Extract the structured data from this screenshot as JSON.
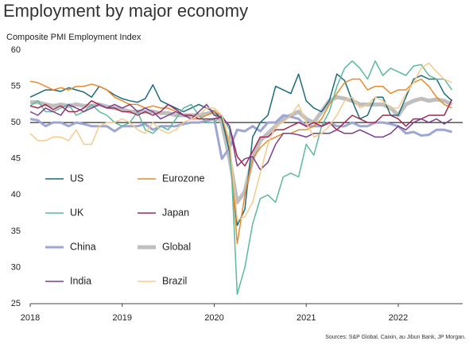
{
  "chart_data": {
    "type": "line",
    "title": "Employment by major economy",
    "subtitle": "Composite PMI Employment Index",
    "source": "Sources: S&P Global, Caixin, au Jibun Bank, JP Morgan.",
    "x": [
      2018,
      2018.083,
      2018.167,
      2018.25,
      2018.333,
      2018.417,
      2018.5,
      2018.583,
      2018.667,
      2018.75,
      2018.833,
      2018.917,
      2019,
      2019.083,
      2019.167,
      2019.25,
      2019.333,
      2019.417,
      2019.5,
      2019.583,
      2019.667,
      2019.75,
      2019.833,
      2019.917,
      2020,
      2020.083,
      2020.167,
      2020.25,
      2020.333,
      2020.417,
      2020.5,
      2020.583,
      2020.667,
      2020.75,
      2020.833,
      2020.917,
      2021,
      2021.083,
      2021.167,
      2021.25,
      2021.333,
      2021.417,
      2021.5,
      2021.583,
      2021.667,
      2021.75,
      2021.833,
      2021.917,
      2022,
      2022.083,
      2022.167,
      2022.25,
      2022.333,
      2022.417,
      2022.5,
      2022.583
    ],
    "xlim": [
      2018,
      2022.7
    ],
    "xticks": [
      2018,
      2019,
      2020,
      2021,
      2022
    ],
    "ylim": [
      25,
      60
    ],
    "yticks": [
      25,
      30,
      35,
      40,
      45,
      50,
      55,
      60
    ],
    "reference_line": 50,
    "grid": false,
    "series": [
      {
        "name": "US",
        "color": "#1b6b7b",
        "line_width": 1.5,
        "values": [
          53.5,
          54,
          54.5,
          54.5,
          54.3,
          54.8,
          54.5,
          54.2,
          53.5,
          55,
          54.5,
          53.8,
          53.3,
          53,
          52.8,
          53.3,
          55.2,
          53,
          52.5,
          52,
          51.5,
          52,
          52.5,
          52,
          51.5,
          50.5,
          46,
          35.8,
          38,
          48,
          50,
          51,
          55,
          54.5,
          54,
          56.7,
          53,
          52,
          51.5,
          53,
          56.7,
          55.8,
          53,
          50.5,
          51,
          53.5,
          53.5,
          51,
          51,
          53.5,
          56,
          56.5,
          56,
          56,
          54,
          53
        ]
      },
      {
        "name": "Eurozone",
        "color": "#e88a2c",
        "line_width": 1.5,
        "values": [
          55.7,
          55.5,
          55,
          54.5,
          54.8,
          54.5,
          55,
          55,
          55.3,
          55,
          54.5,
          53.5,
          53,
          52.5,
          52.5,
          52,
          52.3,
          52,
          52,
          51.5,
          51,
          50.5,
          50.5,
          51,
          51.5,
          51,
          47,
          33.3,
          40,
          45,
          46.5,
          47.5,
          48,
          48.5,
          48.5,
          49,
          49,
          49.5,
          50.5,
          52.5,
          54,
          55.5,
          56,
          56,
          54.5,
          55,
          55,
          54,
          54.5,
          54.5,
          55.5,
          56,
          55,
          53.5,
          52.5,
          52
        ]
      },
      {
        "name": "UK",
        "color": "#5cb99b",
        "line_width": 1.5,
        "values": [
          52.3,
          53,
          51.5,
          51.5,
          52,
          52.5,
          51,
          51.5,
          52.5,
          51.5,
          51,
          50,
          49.5,
          50,
          51.5,
          49,
          48.5,
          49.5,
          49,
          50.5,
          52,
          52.5,
          51,
          50,
          50,
          51,
          49,
          26.3,
          30,
          36,
          39.5,
          40,
          39,
          42.5,
          43,
          42.5,
          47,
          45.5,
          49.5,
          51.5,
          55,
          57.5,
          58.5,
          57.5,
          56,
          58.5,
          56.5,
          57.5,
          57,
          56.5,
          57.8,
          58,
          56.5,
          56,
          56,
          54.5
        ]
      },
      {
        "name": "Japan",
        "color": "#a2284f",
        "line_width": 1.5,
        "values": [
          52.3,
          52,
          52.5,
          51.8,
          52.3,
          51.5,
          51.5,
          52,
          53,
          52.5,
          52,
          52,
          51.5,
          51.5,
          51,
          51.5,
          51,
          51.5,
          52.5,
          51.8,
          51,
          51,
          50.5,
          50.5,
          50.5,
          50.8,
          49.5,
          45.3,
          44,
          46,
          48,
          48,
          49,
          49,
          49.5,
          50,
          49.5,
          50,
          49.5,
          50,
          49,
          50,
          51,
          50.5,
          50,
          50,
          51,
          51,
          50.5,
          49.5,
          50.5,
          50.5,
          51,
          51,
          51,
          53.2
        ]
      },
      {
        "name": "China",
        "color": "#9ea6d6",
        "line_width": 3,
        "values": [
          50.5,
          50.3,
          49.5,
          50,
          50,
          49.5,
          50,
          49.8,
          49.5,
          49.5,
          49.5,
          48.8,
          49.5,
          49.5,
          49.5,
          49.8,
          49,
          49.5,
          49.5,
          49.5,
          49.8,
          50,
          50,
          50.2,
          50.5,
          45,
          46.5,
          49,
          48.8,
          49.5,
          48.8,
          50,
          50,
          51,
          50.8,
          50.5,
          49.5,
          49.5,
          49.5,
          50,
          49.5,
          49.5,
          50,
          49.5,
          49.5,
          50,
          50,
          49.8,
          49.5,
          48.5,
          48.7,
          48.2,
          48.3,
          49,
          49,
          48.7
        ]
      },
      {
        "name": "Global",
        "color": "#bfbfbf",
        "line_width": 5,
        "values": [
          52.8,
          52.8,
          52.5,
          52.3,
          52.5,
          52.3,
          52.5,
          52.3,
          52.3,
          52.5,
          52.2,
          52,
          51.8,
          51.5,
          51.5,
          51.5,
          51.5,
          51.3,
          51.3,
          51,
          51,
          51,
          51,
          51.2,
          51.5,
          50,
          45,
          39,
          40.5,
          45,
          47.5,
          48.5,
          49.5,
          50.5,
          51,
          51.5,
          50.5,
          50,
          51.5,
          53,
          53.5,
          53.3,
          53,
          52.5,
          52.5,
          52.5,
          52.5,
          52,
          51,
          52.5,
          53,
          53.3,
          53,
          53.2,
          53,
          52.5
        ]
      },
      {
        "name": "India",
        "color": "#7b3d90",
        "line_width": 1.5,
        "values": [
          51.5,
          51,
          52,
          51.5,
          51,
          52.5,
          52,
          51.5,
          52,
          52.5,
          52,
          52.5,
          52,
          52.5,
          51.5,
          52,
          51.5,
          50.5,
          51,
          51.5,
          51,
          50.5,
          51.5,
          52.5,
          51,
          50.8,
          49.5,
          44,
          45,
          45.3,
          43.5,
          44.5,
          47,
          48.5,
          48.5,
          48.3,
          48,
          48.5,
          48.5,
          48.5,
          49,
          48.5,
          48.5,
          49,
          48.5,
          48,
          48,
          48.5,
          49.5,
          49,
          50,
          50.5,
          50,
          50.5,
          49.8,
          50.5
        ]
      },
      {
        "name": "Brazil",
        "color": "#f6ca8c",
        "line_width": 1.5,
        "values": [
          48.5,
          47.5,
          47.5,
          48,
          48,
          47.5,
          49,
          47,
          47,
          49.5,
          50,
          50,
          50.5,
          50,
          49,
          48.5,
          50,
          49,
          48.5,
          49,
          50,
          50.5,
          51,
          52,
          52,
          51,
          47.5,
          36.5,
          37,
          39,
          43,
          47,
          49.5,
          50,
          51,
          52.5,
          50,
          48,
          48.5,
          49.5,
          51,
          53,
          53.5,
          52,
          52.5,
          53.5,
          53,
          52,
          52,
          54,
          55.5,
          57.5,
          58.2,
          57,
          56,
          55.5
        ]
      }
    ]
  }
}
